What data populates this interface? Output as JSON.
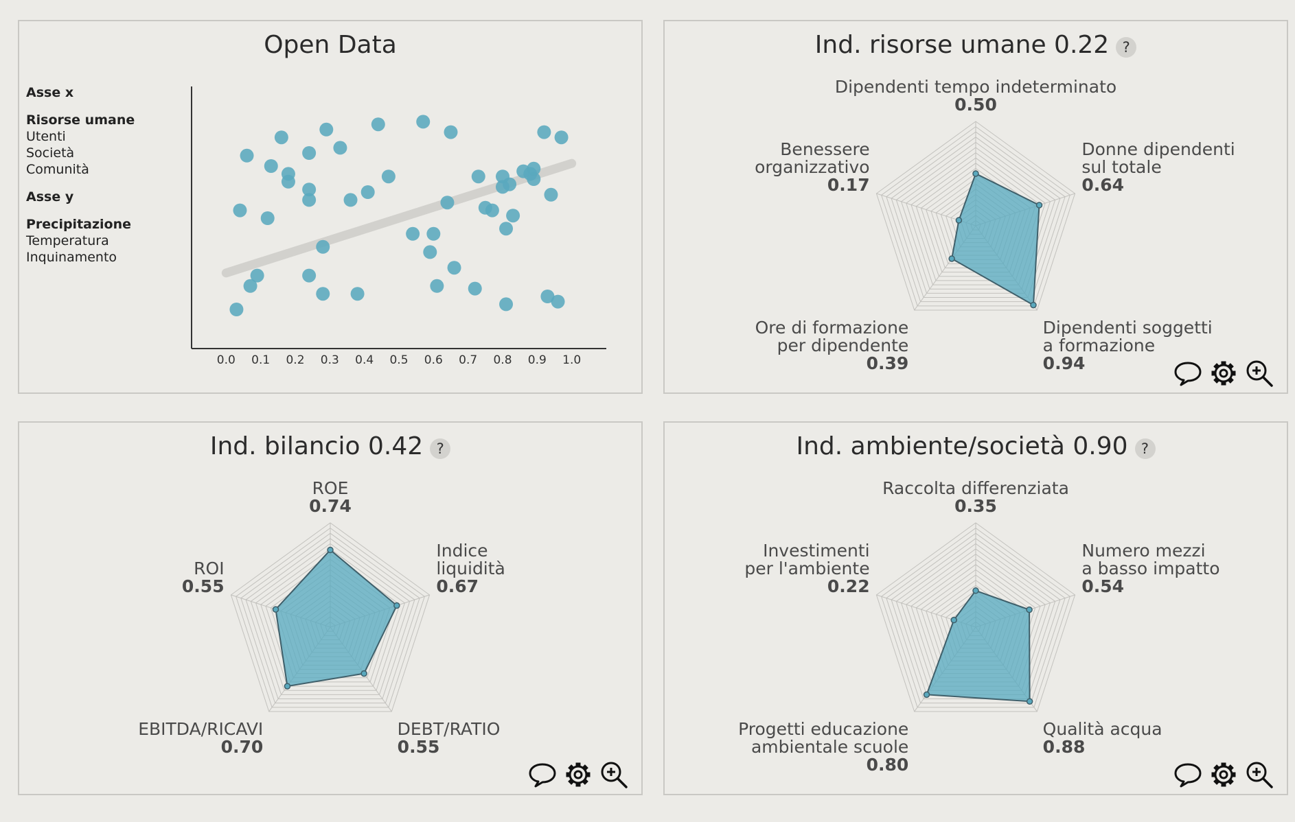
{
  "colors": {
    "accent": "#5aa9be",
    "fill": "rgba(86,170,192,0.75)",
    "stroke": "#3f5f6a",
    "grid": "#c2c1bd",
    "trend": "#d2d1cd"
  },
  "open_data": {
    "title": "Open Data",
    "x_axis": {
      "header": "Asse x",
      "options": [
        "Risorse umane",
        "Utenti",
        "Società",
        "Comunità"
      ],
      "selected": "Risorse umane"
    },
    "y_axis": {
      "header": "Asse y",
      "options": [
        "Precipitazione",
        "Temperatura",
        "Inquinamento"
      ],
      "selected": "Precipitazione"
    }
  },
  "chart_data": [
    {
      "type": "scatter",
      "title": "Open Data",
      "xlabel": "",
      "ylabel": "",
      "xlim": [
        -0.1,
        1.1
      ],
      "ylim": [
        0,
        1
      ],
      "x_ticks": [
        "0.0",
        "0.1",
        "0.2",
        "0.3",
        "0.4",
        "0.5",
        "0.6",
        "0.7",
        "0.8",
        "0.9",
        "1.0"
      ],
      "trendline": [
        [
          0.0,
          0.29
        ],
        [
          1.0,
          0.71
        ]
      ],
      "points": [
        [
          0.03,
          0.15
        ],
        [
          0.04,
          0.53
        ],
        [
          0.06,
          0.74
        ],
        [
          0.07,
          0.24
        ],
        [
          0.09,
          0.28
        ],
        [
          0.12,
          0.5
        ],
        [
          0.13,
          0.7
        ],
        [
          0.16,
          0.81
        ],
        [
          0.18,
          0.67
        ],
        [
          0.18,
          0.64
        ],
        [
          0.24,
          0.75
        ],
        [
          0.24,
          0.61
        ],
        [
          0.24,
          0.57
        ],
        [
          0.24,
          0.28
        ],
        [
          0.28,
          0.39
        ],
        [
          0.28,
          0.21
        ],
        [
          0.29,
          0.84
        ],
        [
          0.33,
          0.77
        ],
        [
          0.36,
          0.57
        ],
        [
          0.38,
          0.21
        ],
        [
          0.41,
          0.6
        ],
        [
          0.44,
          0.86
        ],
        [
          0.47,
          0.66
        ],
        [
          0.54,
          0.44
        ],
        [
          0.57,
          0.87
        ],
        [
          0.59,
          0.37
        ],
        [
          0.6,
          0.44
        ],
        [
          0.61,
          0.24
        ],
        [
          0.64,
          0.56
        ],
        [
          0.65,
          0.83
        ],
        [
          0.66,
          0.31
        ],
        [
          0.72,
          0.23
        ],
        [
          0.73,
          0.66
        ],
        [
          0.75,
          0.54
        ],
        [
          0.77,
          0.53
        ],
        [
          0.8,
          0.66
        ],
        [
          0.8,
          0.62
        ],
        [
          0.81,
          0.46
        ],
        [
          0.81,
          0.17
        ],
        [
          0.82,
          0.63
        ],
        [
          0.83,
          0.51
        ],
        [
          0.86,
          0.68
        ],
        [
          0.88,
          0.67
        ],
        [
          0.89,
          0.65
        ],
        [
          0.89,
          0.69
        ],
        [
          0.92,
          0.83
        ],
        [
          0.93,
          0.2
        ],
        [
          0.94,
          0.59
        ],
        [
          0.96,
          0.18
        ],
        [
          0.97,
          0.81
        ]
      ]
    },
    {
      "type": "radar",
      "title": "Ind. risorse umane 0.22",
      "axes": [
        {
          "label": [
            "Dipendenti tempo indeterminato"
          ],
          "value": 0.5
        },
        {
          "label": [
            "Donne dipendenti",
            "sul totale"
          ],
          "value": 0.64
        },
        {
          "label": [
            "Dipendenti soggetti",
            "a formazione"
          ],
          "value": 0.94
        },
        {
          "label": [
            "Ore di formazione",
            "per dipendente"
          ],
          "value": 0.39
        },
        {
          "label": [
            "Benessere",
            "organizzativo"
          ],
          "value": 0.17
        }
      ]
    },
    {
      "type": "radar",
      "title": "Ind. bilancio 0.42",
      "axes": [
        {
          "label": [
            "ROE"
          ],
          "value": 0.74
        },
        {
          "label": [
            "Indice",
            "liquidità"
          ],
          "value": 0.67
        },
        {
          "label": [
            "DEBT/RATIO"
          ],
          "value": 0.55
        },
        {
          "label": [
            "EBITDA/RICAVI"
          ],
          "value": 0.7
        },
        {
          "label": [
            "ROI"
          ],
          "value": 0.55
        }
      ]
    },
    {
      "type": "radar",
      "title": "Ind. ambiente/società 0.90",
      "axes": [
        {
          "label": [
            "Raccolta differenziata"
          ],
          "value": 0.35
        },
        {
          "label": [
            "Numero mezzi",
            "a basso impatto"
          ],
          "value": 0.54
        },
        {
          "label": [
            "Qualità acqua"
          ],
          "value": 0.88
        },
        {
          "label": [
            "Progetti educazione",
            "ambientale scuole"
          ],
          "value": 0.8
        },
        {
          "label": [
            "Investimenti",
            "per l'ambiente"
          ],
          "value": 0.22
        }
      ]
    }
  ],
  "help_label": "?",
  "tools": [
    {
      "name": "comment-icon"
    },
    {
      "name": "gear-icon"
    },
    {
      "name": "zoom-in-icon"
    }
  ]
}
